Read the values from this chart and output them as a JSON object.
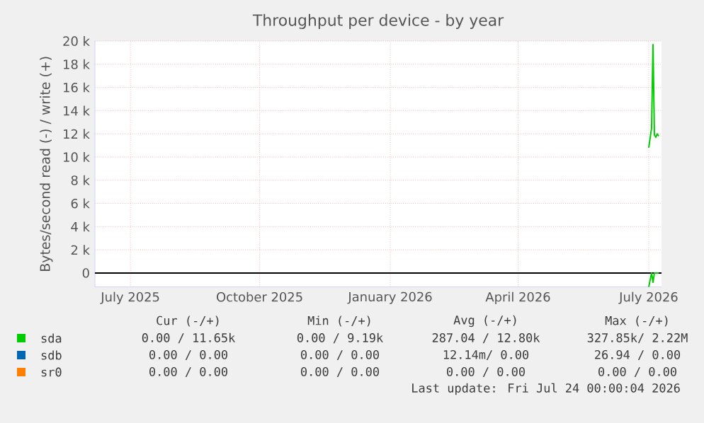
{
  "chart_data": {
    "type": "line",
    "title": "Throughput per device - by year",
    "ylabel": "Bytes/second read (-) / write (+)",
    "xlim": [
      "2025-06-21",
      "2026-07-25"
    ],
    "ylim": [
      -1200,
      20000
    ],
    "xticks": [
      {
        "value": "2025-07-16",
        "label": "July 2025"
      },
      {
        "value": "2025-10-15",
        "label": "October 2025"
      },
      {
        "value": "2026-01-15",
        "label": "January 2026"
      },
      {
        "value": "2026-04-15",
        "label": "April 2026"
      },
      {
        "value": "2026-07-16",
        "label": "July 2026"
      }
    ],
    "yticks": [
      0,
      {
        "value": 2000,
        "label": "2 k"
      },
      {
        "value": 4000,
        "label": "4 k"
      },
      {
        "value": 6000,
        "label": "6 k"
      },
      {
        "value": 8000,
        "label": "8 k"
      },
      {
        "value": 10000,
        "label": "10 k"
      },
      {
        "value": 12000,
        "label": "12 k"
      },
      {
        "value": 14000,
        "label": "14 k"
      },
      {
        "value": 16000,
        "label": "16 k"
      },
      {
        "value": 18000,
        "label": "18 k"
      },
      {
        "value": 20000,
        "label": "20 k"
      }
    ],
    "grid": true,
    "legend": "bottom",
    "ref_lines": [
      {
        "axis": "y",
        "value": 0,
        "color": "#000000"
      }
    ],
    "series": [
      {
        "name": "sda",
        "color": "#00cc00",
        "x": [
          "2026-07-16",
          "2026-07-18",
          "2026-07-19",
          "2026-07-20",
          "2026-07-21",
          "2026-07-22",
          "2026-07-23"
        ],
        "values": [
          10800,
          12500,
          19700,
          11900,
          11700,
          12000,
          11800
        ]
      },
      {
        "color": "#00cc00",
        "x": [
          "2026-07-16",
          "2026-07-18",
          "2026-07-19",
          "2026-07-20",
          "2026-07-21",
          "2026-07-22",
          "2026-07-23"
        ],
        "values": [
          -1200,
          0,
          -800,
          0,
          0,
          0,
          0
        ]
      },
      {
        "name": "sdb",
        "color": "#0066b3"
      },
      {
        "name": "sr0",
        "color": "#ff8000"
      }
    ],
    "annotations": [
      "Cur (-/+)",
      "Min (-/+)",
      "Avg (-/+)",
      "Max (-/+)",
      "0.00 / 11.65k",
      "0.00 /  9.19k",
      "287.04 / 12.80k",
      "327.85k/  2.22M",
      "0.00 /  0.00",
      "0.00 /  0.00",
      "12.14m/  0.00",
      "26.94 /  0.00",
      "0.00 /  0.00",
      "0.00 /  0.00",
      "0.00 /  0.00",
      "0.00 /  0.00",
      "Last update: Fri Jul 24 00:00:04 2026"
    ]
  }
}
